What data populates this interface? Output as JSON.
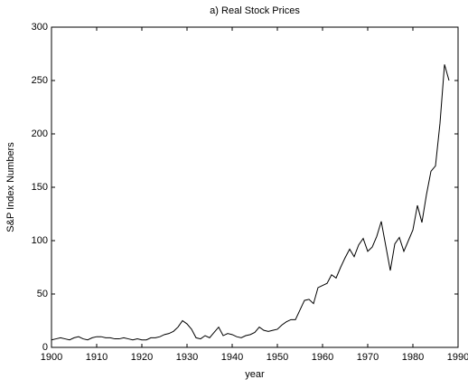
{
  "chart_data": {
    "type": "line",
    "title": "a) Real Stock Prices",
    "xlabel": "year",
    "ylabel": "S&P Index Numbers",
    "x": [
      1900,
      1901,
      1902,
      1903,
      1904,
      1905,
      1906,
      1907,
      1908,
      1909,
      1910,
      1911,
      1912,
      1913,
      1914,
      1915,
      1916,
      1917,
      1918,
      1919,
      1920,
      1921,
      1922,
      1923,
      1924,
      1925,
      1926,
      1927,
      1928,
      1929,
      1930,
      1931,
      1932,
      1933,
      1934,
      1935,
      1936,
      1937,
      1938,
      1939,
      1940,
      1941,
      1942,
      1943,
      1944,
      1945,
      1946,
      1947,
      1948,
      1949,
      1950,
      1951,
      1952,
      1953,
      1954,
      1955,
      1956,
      1957,
      1958,
      1959,
      1960,
      1961,
      1962,
      1963,
      1964,
      1965,
      1966,
      1967,
      1968,
      1969,
      1970,
      1971,
      1972,
      1973,
      1974,
      1975,
      1976,
      1977,
      1978,
      1979,
      1980,
      1981,
      1982,
      1983,
      1984,
      1985,
      1986,
      1987,
      1988
    ],
    "series": [
      {
        "color": "#000000",
        "values": [
          7,
          8,
          9,
          8,
          7,
          9,
          10,
          8,
          7,
          9,
          10,
          10,
          9,
          9,
          8,
          8,
          9,
          8,
          7,
          8,
          7,
          7,
          9,
          9,
          10,
          12,
          13,
          15,
          19,
          25,
          22,
          17,
          9,
          8,
          11,
          9,
          14,
          19,
          11,
          13,
          12,
          10,
          9,
          11,
          12,
          14,
          19,
          16,
          15,
          16,
          17,
          21,
          24,
          26,
          26,
          35,
          44,
          45,
          41,
          56,
          58,
          60,
          68,
          65,
          75,
          84,
          92,
          85,
          96,
          102,
          90,
          94,
          104,
          118,
          95,
          72,
          97,
          103,
          90,
          100,
          110,
          133,
          117,
          143,
          165,
          170,
          210,
          265,
          250
        ]
      }
    ],
    "xlim": [
      1900,
      1990
    ],
    "xticks": [
      1900,
      1910,
      1920,
      1930,
      1940,
      1950,
      1960,
      1970,
      1980,
      1990
    ],
    "ylim": [
      0,
      300
    ],
    "yticks": [
      0,
      50,
      100,
      150,
      200,
      250,
      300
    ]
  }
}
